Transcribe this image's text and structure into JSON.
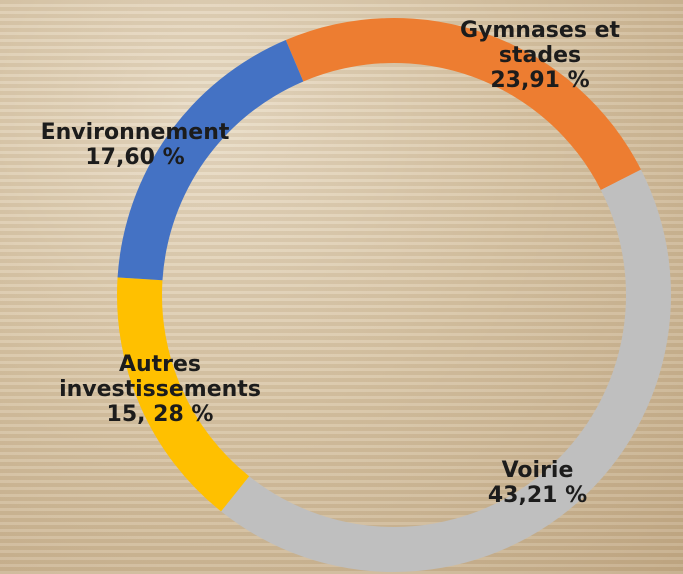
{
  "chart_data": {
    "type": "donut",
    "categories": [
      "Gymnases et stades",
      "Voirie",
      "Autres investissements",
      "Environnement"
    ],
    "values": [
      23.91,
      43.21,
      15.28,
      17.6
    ],
    "value_labels": [
      "23,91 %",
      "43,21 %",
      "15, 28 %",
      "17,60 %"
    ],
    "colors": [
      "#ed7d31",
      "#bfbfbf",
      "#ffc000",
      "#4472c4"
    ]
  }
}
